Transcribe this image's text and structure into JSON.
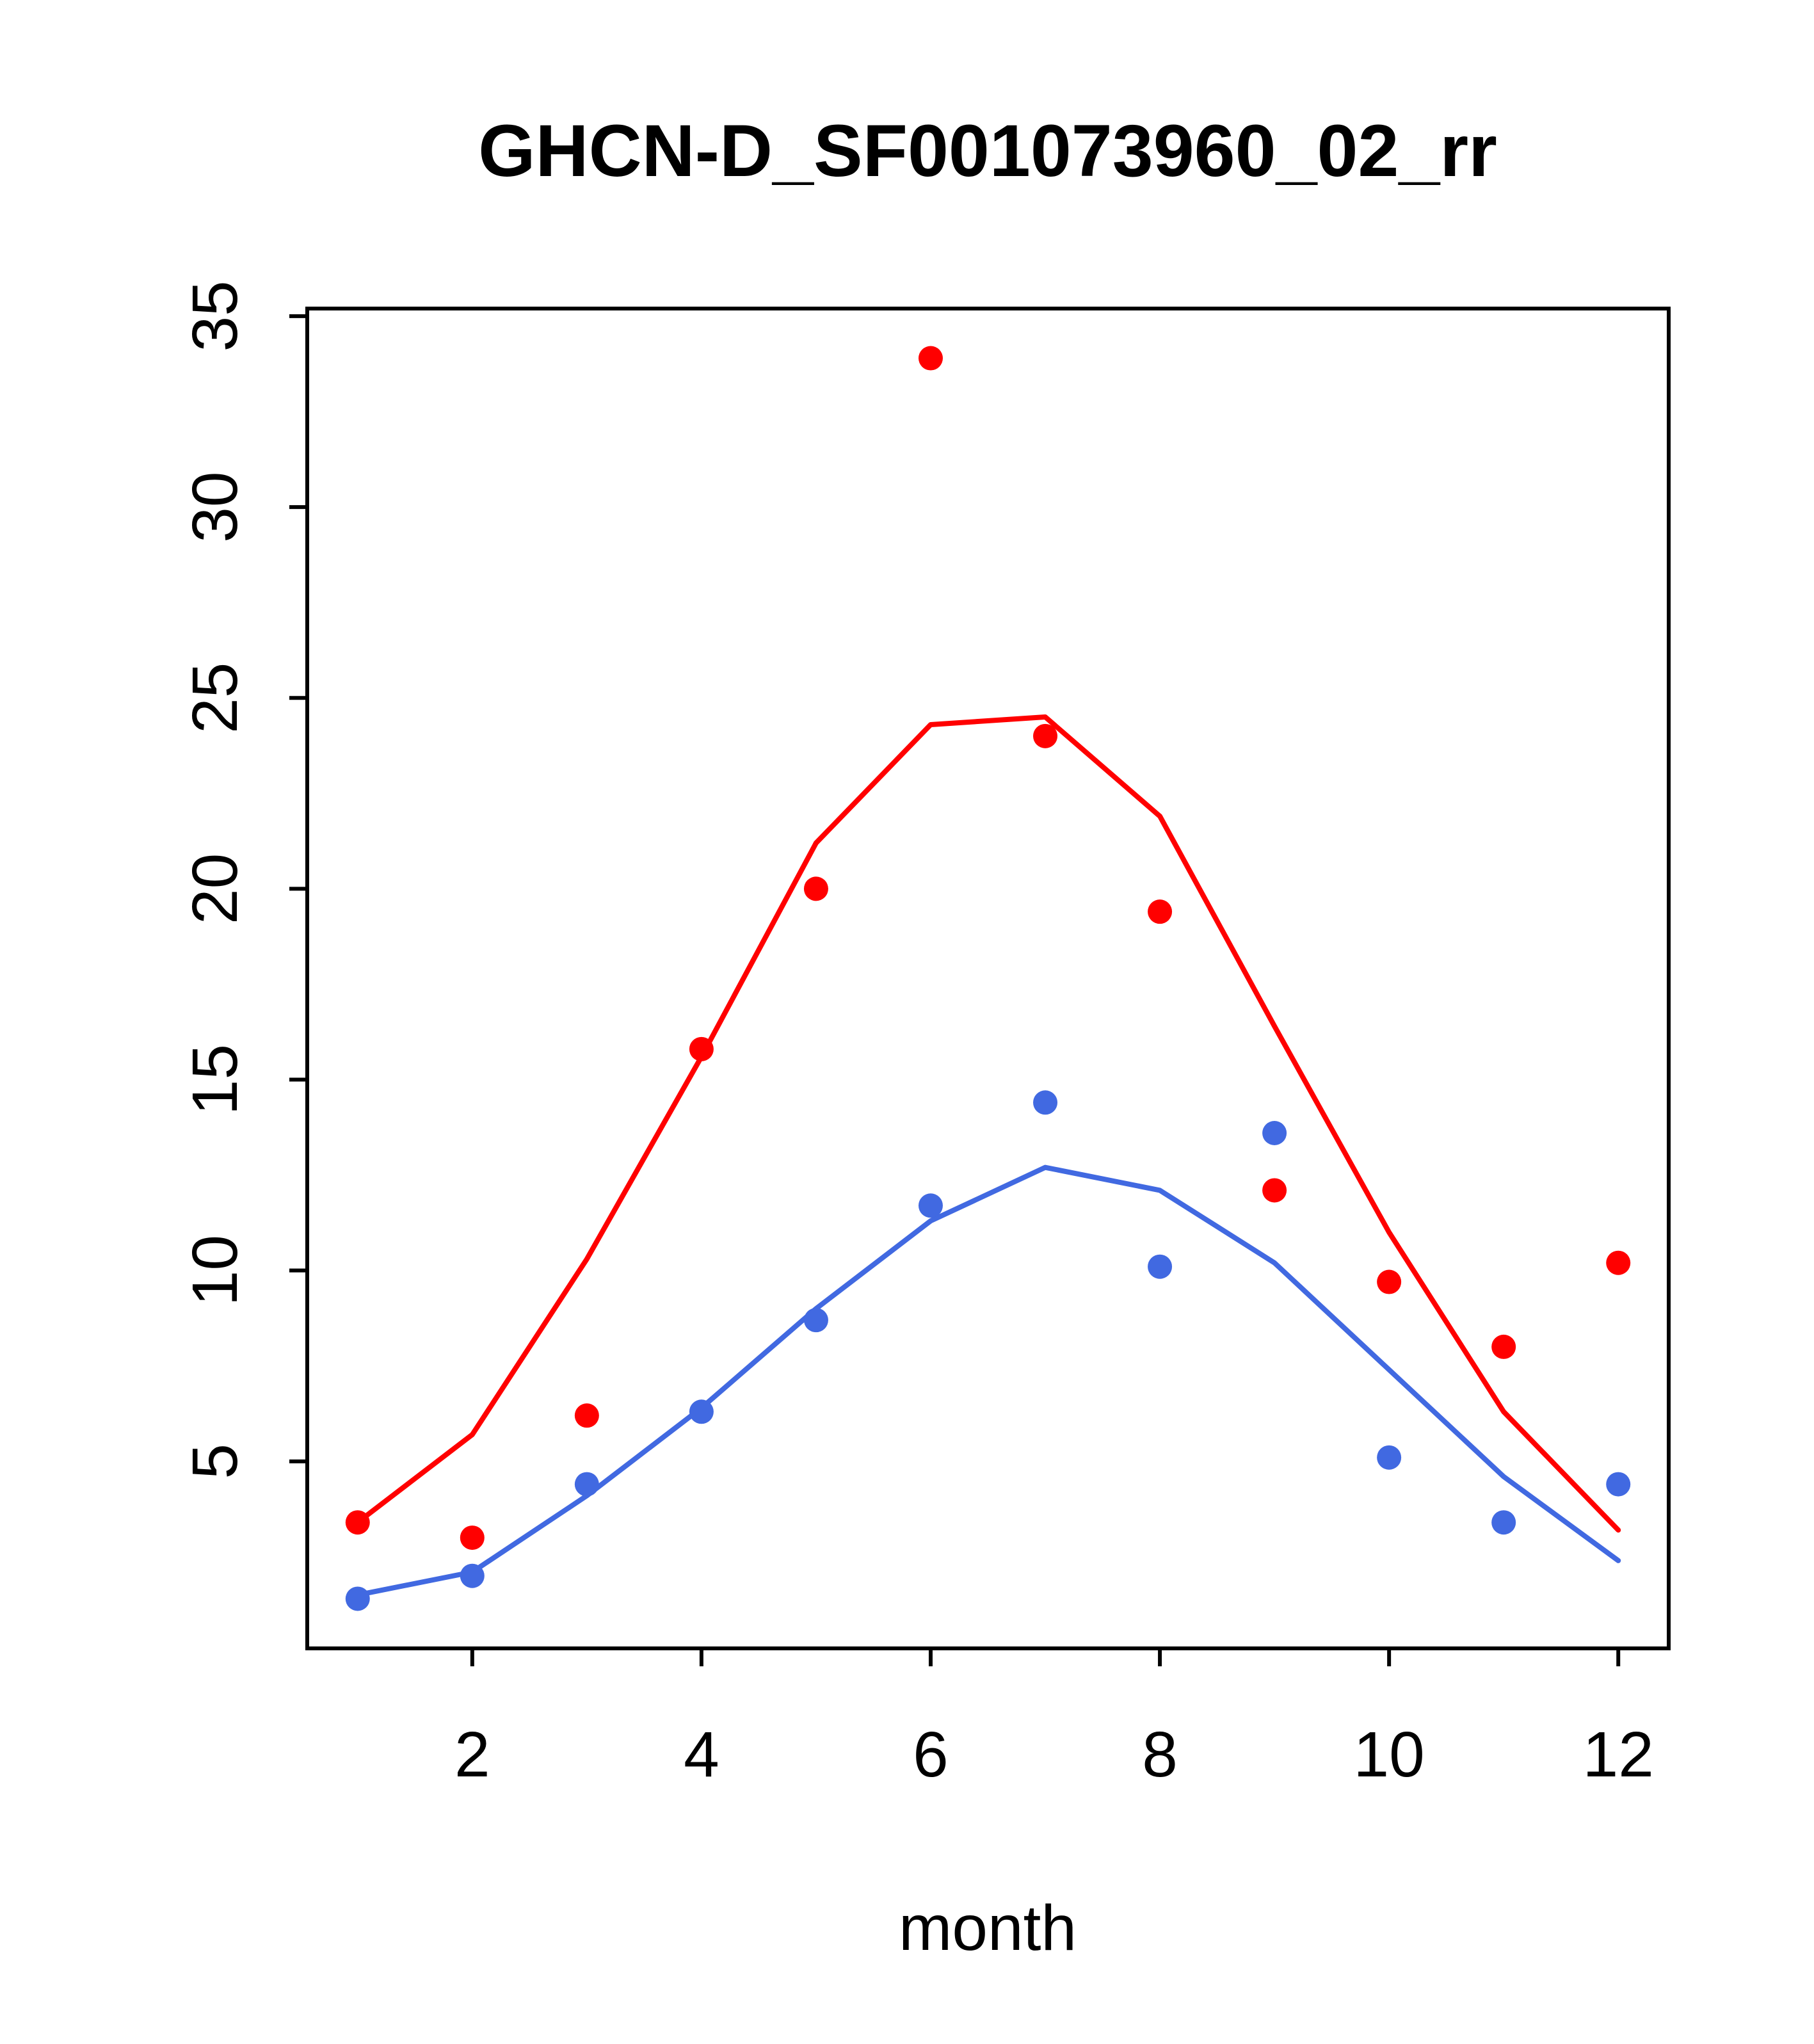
{
  "title": "GHCN-D_SF001073960_02_rr",
  "chart_data": {
    "type": "scatter",
    "title": "GHCN-D_SF001073960_02_rr",
    "xlabel": "month",
    "ylabel": "",
    "x": [
      1,
      2,
      3,
      4,
      5,
      6,
      7,
      8,
      9,
      10,
      11,
      12
    ],
    "xticks": [
      2,
      4,
      6,
      8,
      10,
      12
    ],
    "yticks": [
      5,
      10,
      15,
      20,
      25,
      30,
      35
    ],
    "xlim": [
      0.56,
      12.44
    ],
    "ylim": [
      0.1,
      35.2
    ],
    "grid": false,
    "legend": "none",
    "colors": {
      "red": "#ff0000",
      "blue": "#4169e1"
    },
    "series": [
      {
        "name": "red-points",
        "style": "points",
        "color": "#ff0000",
        "values": [
          3.4,
          3.0,
          6.2,
          15.8,
          20.0,
          33.9,
          24.0,
          19.4,
          12.1,
          9.7,
          8.0,
          10.2
        ]
      },
      {
        "name": "red-line",
        "style": "line",
        "color": "#ff0000",
        "values": [
          3.4,
          5.7,
          10.3,
          15.6,
          21.2,
          24.3,
          24.5,
          21.9,
          16.4,
          11.0,
          6.3,
          3.2
        ]
      },
      {
        "name": "blue-points",
        "style": "points",
        "color": "#4169e1",
        "values": [
          1.4,
          2.0,
          4.4,
          6.3,
          8.7,
          11.7,
          14.4,
          10.1,
          13.6,
          5.1,
          3.4,
          4.4
        ]
      },
      {
        "name": "blue-line",
        "style": "line",
        "color": "#4169e1",
        "values": [
          1.5,
          2.1,
          4.1,
          6.4,
          9.0,
          11.3,
          12.7,
          12.1,
          10.2,
          7.4,
          4.6,
          2.4
        ]
      }
    ]
  }
}
